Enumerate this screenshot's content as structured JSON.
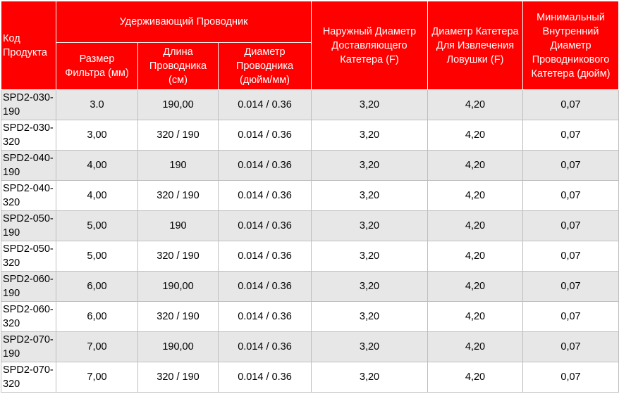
{
  "header": {
    "code": "Код Продукта",
    "retaining_wire": "Удерживающий Проводник",
    "filter_size": "Размер Фильтра (мм)",
    "wire_length": "Длина Проводника (см)",
    "wire_diameter": "Диаметр Проводника (дюйм/мм)",
    "delivery_catheter_od": "Наружный Диаметр Доставляющего Катетера (F)",
    "retrieval_catheter_diameter": "Диаметр Катетера Для Извлечения Ловушки (F)",
    "min_guide_catheter_id": "Минимальный Внутренний Диаметр Проводникового Катетера (дюйм)"
  },
  "rows": [
    {
      "code": "SPD2-030-190",
      "filter": "3.0",
      "length": "190,00",
      "wire_d": "0.014 / 0.36",
      "od": "3,20",
      "retrieval": "4,20",
      "min_id": "0,07"
    },
    {
      "code": "SPD2-030-320",
      "filter": "3,00",
      "length": "320 / 190",
      "wire_d": "0.014 / 0.36",
      "od": "3,20",
      "retrieval": "4,20",
      "min_id": "0,07"
    },
    {
      "code": "SPD2-040-190",
      "filter": "4,00",
      "length": "190",
      "wire_d": "0.014 / 0.36",
      "od": "3,20",
      "retrieval": "4,20",
      "min_id": "0,07"
    },
    {
      "code": "SPD2-040-320",
      "filter": "4,00",
      "length": "320 / 190",
      "wire_d": "0.014 / 0.36",
      "od": "3,20",
      "retrieval": "4,20",
      "min_id": "0,07"
    },
    {
      "code": "SPD2-050-190",
      "filter": "5,00",
      "length": "190",
      "wire_d": "0.014 / 0.36",
      "od": "3,20",
      "retrieval": "4,20",
      "min_id": "0,07"
    },
    {
      "code": "SPD2-050-320",
      "filter": "5,00",
      "length": "320 / 190",
      "wire_d": "0.014 / 0.36",
      "od": "3,20",
      "retrieval": "4,20",
      "min_id": "0,07"
    },
    {
      "code": "SPD2-060-190",
      "filter": "6,00",
      "length": "190,00",
      "wire_d": "0.014 / 0.36",
      "od": "3,20",
      "retrieval": "4,20",
      "min_id": "0,07"
    },
    {
      "code": "SPD2-060-320",
      "filter": "6,00",
      "length": "320 / 190",
      "wire_d": "0.014 / 0.36",
      "od": "3,20",
      "retrieval": "4,20",
      "min_id": "0,07"
    },
    {
      "code": "SPD2-070-190",
      "filter": "7,00",
      "length": "190,00",
      "wire_d": "0.014 / 0.36",
      "od": "3,20",
      "retrieval": "4,20",
      "min_id": "0,07"
    },
    {
      "code": "SPD2-070-320",
      "filter": "7,00",
      "length": "320 / 190",
      "wire_d": "0.014 / 0.36",
      "od": "3,20",
      "retrieval": "4,20",
      "min_id": "0,07"
    }
  ],
  "colors": {
    "header_bg": "#ff0000",
    "header_text": "#ffffff",
    "row_shade": "#e7e7e7",
    "grid": "#bfbfbf"
  }
}
